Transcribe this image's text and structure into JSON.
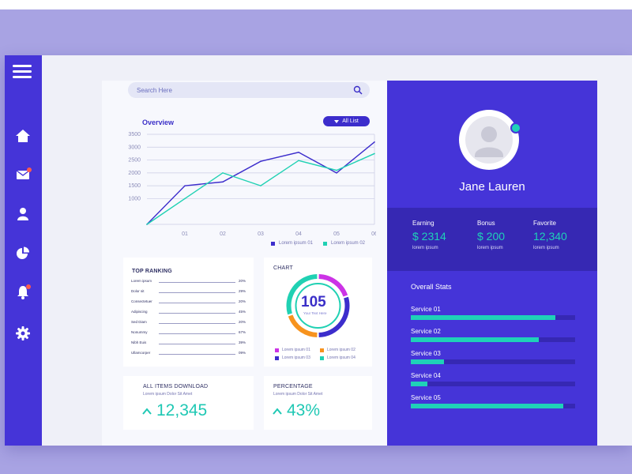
{
  "colors": {
    "primary": "#4534d8",
    "accent": "#1fd1b8",
    "dark": "#3628b3",
    "line1": "#3c2dcc",
    "line2": "#20d1b3"
  },
  "sidebar": {
    "items": [
      {
        "icon": "home-icon"
      },
      {
        "icon": "mail-icon",
        "badge": true
      },
      {
        "icon": "user-icon"
      },
      {
        "icon": "pie-chart-icon"
      },
      {
        "icon": "bell-icon",
        "badge": true
      },
      {
        "icon": "gear-icon"
      }
    ]
  },
  "search": {
    "placeholder": "Search Here"
  },
  "overview": {
    "title": "Overview",
    "filter_label": "All List"
  },
  "chart_data": {
    "type": "line",
    "title": "Overview",
    "x": [
      "",
      "01",
      "02",
      "03",
      "04",
      "05",
      "06"
    ],
    "ylim": [
      0,
      3500
    ],
    "yticks": [
      1000,
      1500,
      2000,
      2500,
      3000,
      3500
    ],
    "grid": true,
    "legend_position": "bottom-right",
    "series": [
      {
        "name": "Lorem ipsum 01",
        "color": "#3c2dcc",
        "values": [
          0,
          1500,
          1650,
          2450,
          2800,
          2000,
          3200
        ]
      },
      {
        "name": "Lorem ipsum 02",
        "color": "#20d1b3",
        "values": [
          0,
          1000,
          2000,
          1500,
          2480,
          2100,
          2750
        ]
      }
    ]
  },
  "top_ranking": {
    "title": "TOP RANKING",
    "rows": [
      {
        "label": "Lorem ipsum",
        "value": "20%"
      },
      {
        "label": "Dolor sit",
        "value": "29%"
      },
      {
        "label": "Consectetuer",
        "value": "20%"
      },
      {
        "label": "Adipiscing",
        "value": "45%"
      },
      {
        "label": "Sed Diam",
        "value": "20%"
      },
      {
        "label": "Nonummy",
        "value": "67%"
      },
      {
        "label": "Nibh Euis",
        "value": "39%"
      },
      {
        "label": "Ullamcorper",
        "value": "09%"
      }
    ]
  },
  "donut": {
    "title": "CHART",
    "number": "105",
    "subtitle": "Your Text Here",
    "segments": [
      {
        "label": "Lorem ipsum 01",
        "color": "#cc33e6",
        "value": 20
      },
      {
        "label": "Lorem ipsum 02",
        "color": "#f7931e",
        "value": 20
      },
      {
        "label": "Lorem ipsum 03",
        "color": "#3c2dcc",
        "value": 30
      },
      {
        "label": "Lorem ipsum 04",
        "color": "#20d1b3",
        "value": 30
      }
    ]
  },
  "downloads": {
    "title": "ALL ITEMS DOWNLOAD",
    "subtitle": "Lorem ipsum Dolor Sit Amet",
    "value": "12,345"
  },
  "percentage": {
    "title": "PERCENTAGE",
    "subtitle": "Lorem ipsum Dolor Sit Amet",
    "value": "43%"
  },
  "profile": {
    "name": "Jane Lauren",
    "stats": [
      {
        "label": "Earning",
        "value": "$ 2314",
        "sub": "lorem ipsum"
      },
      {
        "label": "Bonus",
        "value": "$ 200",
        "sub": "lorem ipsum"
      },
      {
        "label": "Favorite",
        "value": "12,340",
        "sub": "lorem ipsum"
      }
    ],
    "overall_title": "Overall Stats",
    "services": [
      {
        "label": "Service  01",
        "progress": 0.88
      },
      {
        "label": "Service 02",
        "progress": 0.78
      },
      {
        "label": "Service 03",
        "progress": 0.2
      },
      {
        "label": "Service 04",
        "progress": 0.1
      },
      {
        "label": "Service  05",
        "progress": 0.93
      }
    ]
  }
}
